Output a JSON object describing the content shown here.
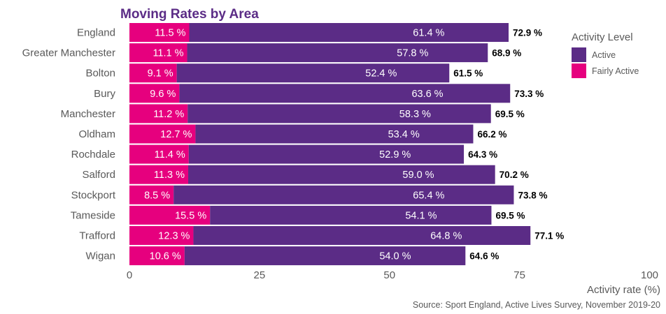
{
  "chart_data": {
    "type": "bar",
    "orientation": "horizontal",
    "stacked": true,
    "title": "Moving Rates by Area",
    "xlabel": "Activity rate (%)",
    "ylabel": "",
    "xlim": [
      0,
      100
    ],
    "xticks": [
      0,
      25,
      50,
      75,
      100
    ],
    "grid": false,
    "caption": "Source: Sport England, Active Lives Survey, November 2019-20",
    "legend": {
      "title": "Activity Level",
      "position": "right",
      "entries": [
        {
          "name": "Active",
          "color": "#5b2c86"
        },
        {
          "name": "Fairly Active",
          "color": "#e6007e"
        }
      ]
    },
    "categories": [
      "England",
      "Greater Manchester",
      "Bolton",
      "Bury",
      "Manchester",
      "Oldham",
      "Rochdale",
      "Salford",
      "Stockport",
      "Tameside",
      "Trafford",
      "Wigan"
    ],
    "series": [
      {
        "name": "Fairly Active",
        "color": "#e6007e",
        "values": [
          11.5,
          11.1,
          9.1,
          9.6,
          11.2,
          12.7,
          11.4,
          11.3,
          8.5,
          15.5,
          12.3,
          10.6
        ]
      },
      {
        "name": "Active",
        "color": "#5b2c86",
        "values": [
          61.4,
          57.8,
          52.4,
          63.6,
          58.3,
          53.4,
          52.9,
          59.0,
          65.4,
          54.1,
          64.8,
          54.0
        ]
      }
    ],
    "totals": [
      72.9,
      68.9,
      61.5,
      73.3,
      69.5,
      66.2,
      64.3,
      70.2,
      73.8,
      69.5,
      77.1,
      64.6
    ],
    "value_suffix": " %"
  }
}
